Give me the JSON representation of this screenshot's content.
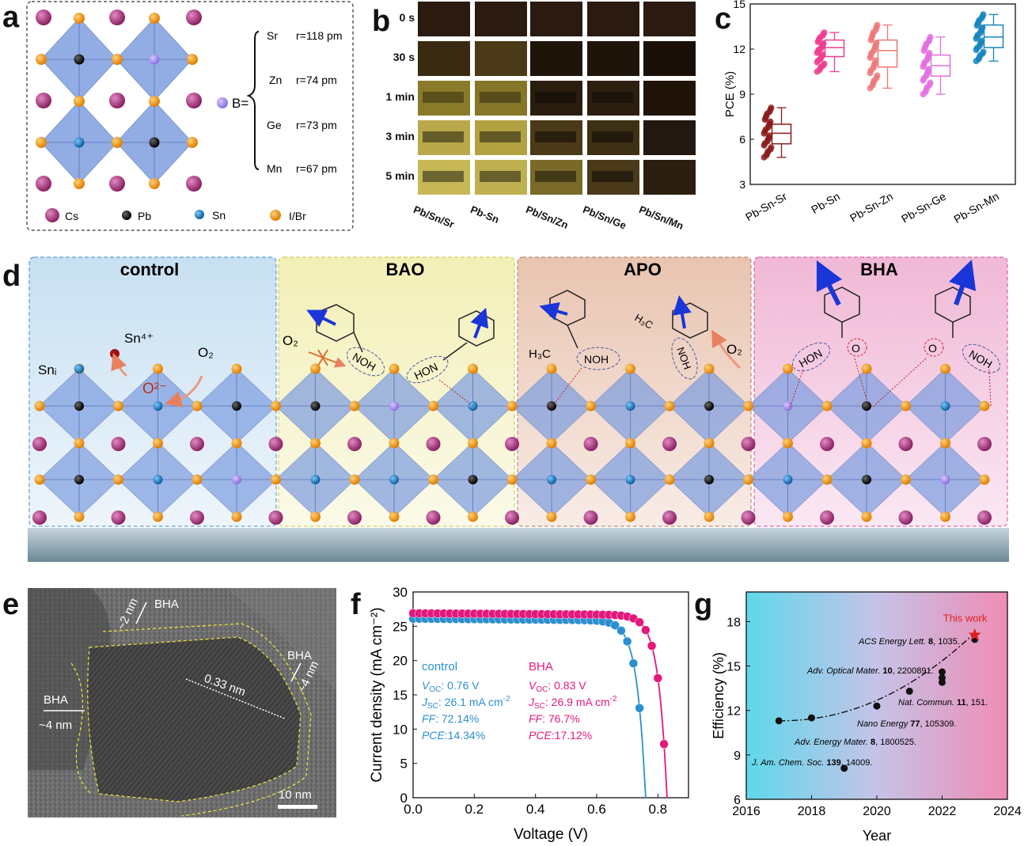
{
  "panel_letters": {
    "a": "a",
    "b": "b",
    "c": "c",
    "d": "d",
    "e": "e",
    "f": "f",
    "g": "g"
  },
  "panel_a": {
    "b_label": "B=",
    "ions": [
      {
        "el": "Sr",
        "r": "r=118 pm"
      },
      {
        "el": "Zn",
        "r": "r=74 pm"
      },
      {
        "el": "Ge",
        "r": "r=73 pm"
      },
      {
        "el": "Mn",
        "r": "r=67 pm"
      }
    ],
    "legend": [
      {
        "label": "Cs",
        "color": "#a8397a"
      },
      {
        "label": "Pb",
        "color": "#1b1b1b"
      },
      {
        "label": "Sn",
        "color": "#1f7fc0"
      },
      {
        "label": "I/Br",
        "color": "#f08a10"
      }
    ]
  },
  "panel_b": {
    "times": [
      "0 s",
      "30 s",
      "1 min",
      "3 min",
      "5 min"
    ],
    "samples": [
      "Pb/Sn/Sr",
      "Pb-Sn",
      "Pb/Sn/Zn",
      "Pb/Sn/Ge",
      "Pb/Sn/Mn"
    ]
  },
  "panel_d": {
    "sections": [
      "control",
      "BAO",
      "APO",
      "BHA"
    ],
    "labels": {
      "sn_ion": "Sn⁴⁺",
      "sni": "Snᵢ",
      "o2": "O₂",
      "o2_minus": "O²⁻",
      "o2_bao": "O₂",
      "o2_apo": "O₂"
    },
    "groups": {
      "noh": "NOH",
      "hon": "HON",
      "h3c": "H₃C",
      "o": "O"
    }
  },
  "panel_e": {
    "bha_top": "BHA",
    "top_thick": "~2 nm",
    "bha_right": "BHA",
    "right_thick": "~4 nm",
    "bha_left": "BHA",
    "left_thick": "~4 nm",
    "lattice": "0.33 nm",
    "scale": "10 nm"
  },
  "chart_data": [
    {
      "panel": "c",
      "type": "box",
      "ylabel": "PCE (%)",
      "ylim": [
        3,
        15
      ],
      "yticks": [
        3,
        6,
        9,
        12,
        15
      ],
      "categories": [
        "Pb-Sn-Sr",
        "Pb-Sn",
        "Pb-Sn-Zn",
        "Pb-Sn-Ge",
        "Pb-Sn-Mn"
      ],
      "colors": [
        "#8b1a1a",
        "#ee3d8f",
        "#ee7777",
        "#e36ee0",
        "#1785bd"
      ],
      "boxes": [
        {
          "min": 4.8,
          "q1": 5.7,
          "median": 6.4,
          "q3": 7.0,
          "max": 8.1
        },
        {
          "min": 10.5,
          "q1": 11.5,
          "median": 12.1,
          "q3": 12.6,
          "max": 13.1
        },
        {
          "min": 9.4,
          "q1": 10.8,
          "median": 11.9,
          "q3": 12.6,
          "max": 13.6
        },
        {
          "min": 9.0,
          "q1": 10.2,
          "median": 10.9,
          "q3": 11.6,
          "max": 12.8
        },
        {
          "min": 11.2,
          "q1": 12.1,
          "median": 12.8,
          "q3": 13.6,
          "max": 14.3
        }
      ]
    },
    {
      "panel": "f",
      "type": "line",
      "xlabel": "Voltage (V)",
      "ylabel": "Current density (mA cm⁻²)",
      "xlim": [
        0.0,
        0.9
      ],
      "ylim": [
        0,
        30
      ],
      "xticks": [
        "0.0",
        "0.2",
        "0.4",
        "0.6",
        "0.8"
      ],
      "yticks": [
        0,
        5,
        10,
        15,
        20,
        25,
        30
      ],
      "series": [
        {
          "name": "control",
          "color": "#2b8fd0",
          "voc": 0.76,
          "jsc": 26.1,
          "params": [
            {
              "k": "V",
              "sub": "OC",
              "sep": ":",
              "v": "  0.76 V"
            },
            {
              "k": "J",
              "sub": "SC",
              "sep": ":",
              "v": "  26.1 mA cm",
              "sup": "-2"
            },
            {
              "k": "FF",
              "sub": "",
              "sep": ":",
              "v": "  72.14%"
            },
            {
              "k": "PCE",
              "sub": "",
              "sep": ":",
              "v": "14.34%"
            }
          ]
        },
        {
          "name": "BHA",
          "color": "#e3187d",
          "voc": 0.83,
          "jsc": 26.9,
          "params": [
            {
              "k": "V",
              "sub": "OC",
              "sep": ":",
              "v": "  0.83 V"
            },
            {
              "k": "J",
              "sub": "SC",
              "sep": ":",
              "v": "  26.9 mA cm",
              "sup": "-2"
            },
            {
              "k": "FF",
              "sub": "",
              "sep": ":",
              "v": "  76.7%"
            },
            {
              "k": "PCE",
              "sub": "",
              "sep": ":",
              "v": "17.12%"
            }
          ]
        }
      ]
    },
    {
      "panel": "g",
      "type": "scatter",
      "xlabel": "Year",
      "ylabel": "Efficiency (%)",
      "xlim": [
        2016,
        2024
      ],
      "ylim": [
        6,
        20
      ],
      "xticks": [
        2016,
        2018,
        2020,
        2022,
        2024
      ],
      "yticks": [
        6,
        9,
        12,
        15,
        18
      ],
      "points": [
        {
          "x": 2017.0,
          "y": 11.3
        },
        {
          "x": 2018.0,
          "y": 11.5
        },
        {
          "x": 2019.0,
          "y": 8.1
        },
        {
          "x": 2020.0,
          "y": 12.3
        },
        {
          "x": 2021.0,
          "y": 13.3
        },
        {
          "x": 2022.0,
          "y": 13.9
        },
        {
          "x": 2022.0,
          "y": 14.2
        },
        {
          "x": 2022.0,
          "y": 14.6
        },
        {
          "x": 2023.0,
          "y": 16.8
        }
      ],
      "star": {
        "x": 2023.0,
        "y": 17.1,
        "label": "This work"
      },
      "refs": [
        {
          "it": "ACS Energy Lett. ",
          "b": "8",
          "rest": ", 1035."
        },
        {
          "it": "Adv. Optical Mater. ",
          "b": "10",
          "rest": ", 2200891."
        },
        {
          "it": "Nat. Commun. ",
          "b": "11",
          "rest": ", 151."
        },
        {
          "it": "Nano Energy ",
          "b": "77",
          "rest": ", 105309."
        },
        {
          "it": "Adv. Energy Mater. ",
          "b": "8",
          "rest": ", 1800525."
        },
        {
          "it": "J. Am. Chem. Soc. ",
          "b": "139",
          "rest": ", 14009."
        }
      ]
    }
  ]
}
